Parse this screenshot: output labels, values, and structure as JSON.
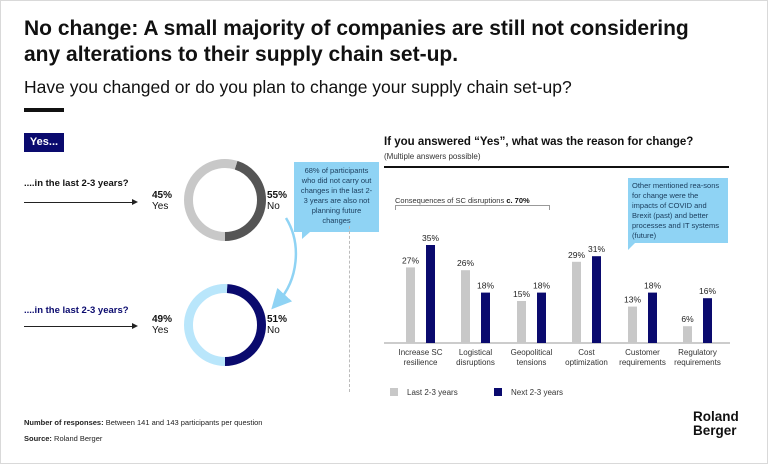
{
  "title": "No change: A small majority of companies are still not considering any alterations to their supply chain set-up.",
  "subtitle": "Have you changed or do you plan to change your supply chain set-up?",
  "yes_badge": "Yes...",
  "donut_rows": [
    {
      "label": "....in the last 2-3 years?",
      "yes_pct": "45%",
      "yes_word": "Yes",
      "no_pct": "55%",
      "no_word": "No"
    },
    {
      "label": "....in the last 2-3 years?",
      "yes_pct": "49%",
      "yes_word": "Yes",
      "no_pct": "51%",
      "no_word": "No"
    }
  ],
  "callout_left": "68% of participants who did not carry out changes in the last 2-3 years are also not planning future changes",
  "question": "If you answered “Yes”, what was the reason for change?",
  "question_note": "(Multiple answers possible)",
  "sc_label": "Consequences of SC disruptions",
  "sc_value": "c. 70%",
  "callout_right": "Other mentioned rea-sons for change were the impacts of COVID and Brexit (past) and better processes and IT systems (future)",
  "legend": {
    "last": "Last 2-3 years",
    "next": "Next 2-3 years"
  },
  "footer": {
    "responses_label": "Number of responses:",
    "responses_text": "Between 141 and 143 participants per question",
    "source_label": "Source:",
    "source_text": "Roland Berger"
  },
  "logo": {
    "line1": "Roland",
    "line2": "Berger"
  },
  "colors": {
    "navy": "#0a0a6e",
    "grey": "#c8c8c8",
    "dark_grey": "#555555",
    "light_blue": "#b9e6fb",
    "callout": "#8fd3f4"
  },
  "chart_data": [
    {
      "type": "pie",
      "categories": [
        "Yes",
        "No"
      ],
      "values": [
        45,
        55
      ]
    },
    {
      "type": "pie",
      "categories": [
        "Yes",
        "No"
      ],
      "values": [
        49,
        51
      ]
    },
    {
      "type": "bar",
      "title": "If you answered “Yes”, what was the reason for change?",
      "categories": [
        [
          "Increase SC",
          "resilience"
        ],
        [
          "Logistical",
          "disruptions"
        ],
        [
          "Geopolitical",
          "tensions"
        ],
        [
          "Cost",
          "optimization"
        ],
        [
          "Customer",
          "requirements"
        ],
        [
          "Regulatory",
          "requirements"
        ]
      ],
      "series": [
        {
          "name": "Last 2-3 years",
          "values": [
            27,
            26,
            15,
            29,
            13,
            6
          ]
        },
        {
          "name": "Next 2-3 years",
          "values": [
            35,
            18,
            18,
            31,
            18,
            16
          ]
        }
      ],
      "ylim": [
        0,
        40
      ],
      "grid": false,
      "legend": "bottom"
    }
  ]
}
